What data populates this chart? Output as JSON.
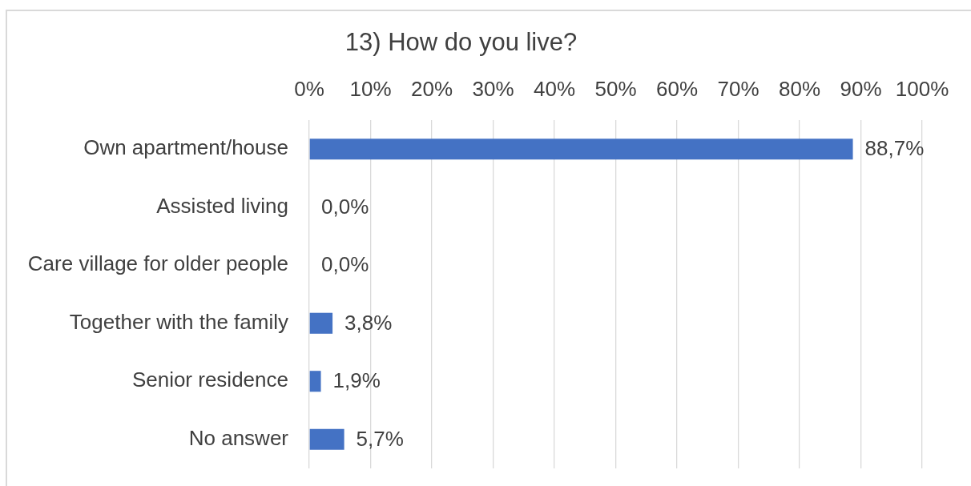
{
  "chart_data": {
    "type": "bar",
    "orientation": "horizontal",
    "title": "13) How do you live?",
    "categories": [
      "Own apartment/house",
      "Assisted living",
      "Care village for older people",
      "Together with the family",
      "Senior residence",
      "No answer"
    ],
    "values": [
      88.7,
      0,
      0,
      3.8,
      1.9,
      5.7
    ],
    "value_labels": [
      "88,7%",
      "0,0%",
      "0,0%",
      "3,8%",
      "1,9%",
      "5,7%"
    ],
    "color": "#4472c4",
    "xlim": [
      0,
      100
    ],
    "xticks": [
      {
        "value": 0,
        "label": "0%"
      },
      {
        "value": 10,
        "label": "10%"
      },
      {
        "value": 20,
        "label": "20%"
      },
      {
        "value": 30,
        "label": "30%"
      },
      {
        "value": 40,
        "label": "40%"
      },
      {
        "value": 50,
        "label": "50%"
      },
      {
        "value": 60,
        "label": "60%"
      },
      {
        "value": 70,
        "label": "70%"
      },
      {
        "value": 80,
        "label": "80%"
      },
      {
        "value": 90,
        "label": "90%"
      },
      {
        "value": 100,
        "label": "100%"
      }
    ],
    "grid": "x"
  }
}
